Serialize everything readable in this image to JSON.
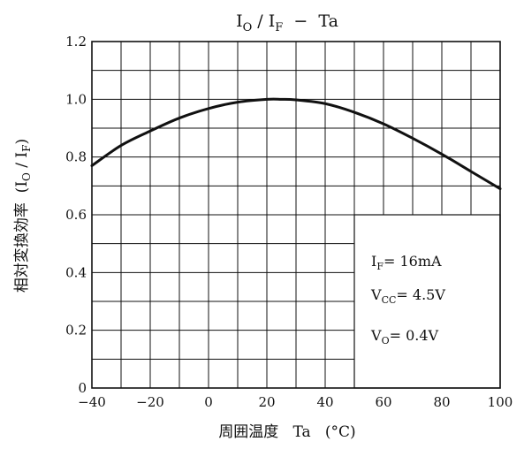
{
  "chart_data": {
    "type": "line",
    "title": "I_O / I_F − Ta",
    "title_parts": {
      "i": "I",
      "o": "O",
      "slash": " / ",
      "f_i": "I",
      "f": "F",
      "dash": "  −  ",
      "ta": "Ta"
    },
    "xlabel": "周囲温度   Ta   (°C)",
    "ylabel": "相対変換効率",
    "ylabel_symbol": {
      "open": "(",
      "i1": "I",
      "sub1": "O",
      "slash": " / ",
      "i2": "I",
      "sub2": "F",
      "close": ")"
    },
    "xlim": [
      -40,
      100
    ],
    "ylim": [
      0,
      1.2
    ],
    "x_ticks": [
      -40,
      -20,
      0,
      20,
      40,
      60,
      80,
      100
    ],
    "x_tick_labels": [
      "−40",
      "−20",
      "0",
      "20",
      "40",
      "60",
      "80",
      "100"
    ],
    "y_ticks": [
      0,
      0.2,
      0.4,
      0.6,
      0.8,
      1.0,
      1.2
    ],
    "y_tick_labels": [
      "0",
      "0.2",
      "0.4",
      "0.6",
      "0.8",
      "1.0",
      "1.2"
    ],
    "x_minor_step": 10,
    "y_minor_step": 0.1,
    "grid": true,
    "series": [
      {
        "x": [
          -40,
          -30,
          -20,
          -10,
          0,
          10,
          20,
          25,
          30,
          40,
          50,
          60,
          70,
          80,
          90,
          100
        ],
        "y": [
          0.77,
          0.84,
          0.89,
          0.935,
          0.968,
          0.99,
          1.0,
          1.0,
          0.998,
          0.985,
          0.955,
          0.915,
          0.865,
          0.81,
          0.75,
          0.69
        ]
      }
    ],
    "annotation": {
      "line1": {
        "v": "I",
        "sub": "F",
        "rest": "= 16mA"
      },
      "line2": {
        "v": "V",
        "sub": "CC",
        "rest": "= 4.5V"
      },
      "line3": {
        "v": "V",
        "sub": "O",
        "rest": "= 0.4V"
      }
    }
  },
  "colors": {
    "ink": "#111111",
    "background": "#ffffff"
  }
}
